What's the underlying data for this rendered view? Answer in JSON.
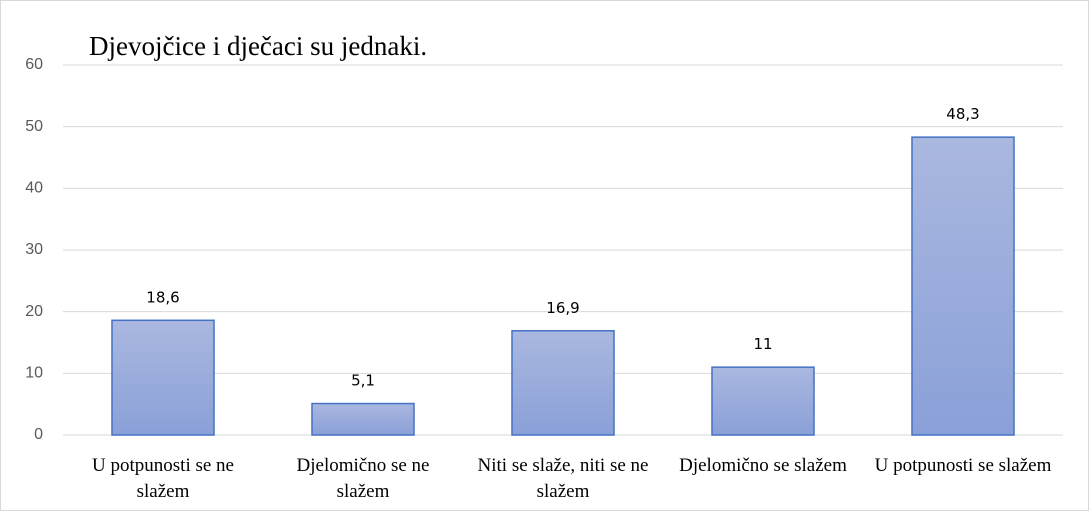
{
  "chart_data": {
    "type": "bar",
    "title": "Djevojčice i dječaci su jednaki.",
    "categories": [
      "U potpunosti se ne slažem",
      "Djelomično se ne slažem",
      "Niti se slaže, niti se ne slažem",
      "Djelomično se slažem",
      "U potpunosti se slažem"
    ],
    "values": [
      18.6,
      5.1,
      16.9,
      11,
      48.3
    ],
    "value_labels": [
      "18,6",
      "5,1",
      "16,9",
      "11",
      "48,3"
    ],
    "color": "#4472c4",
    "ylim": [
      0,
      60
    ],
    "yticks": [
      0,
      10,
      20,
      30,
      40,
      50,
      60
    ],
    "grid": true
  }
}
